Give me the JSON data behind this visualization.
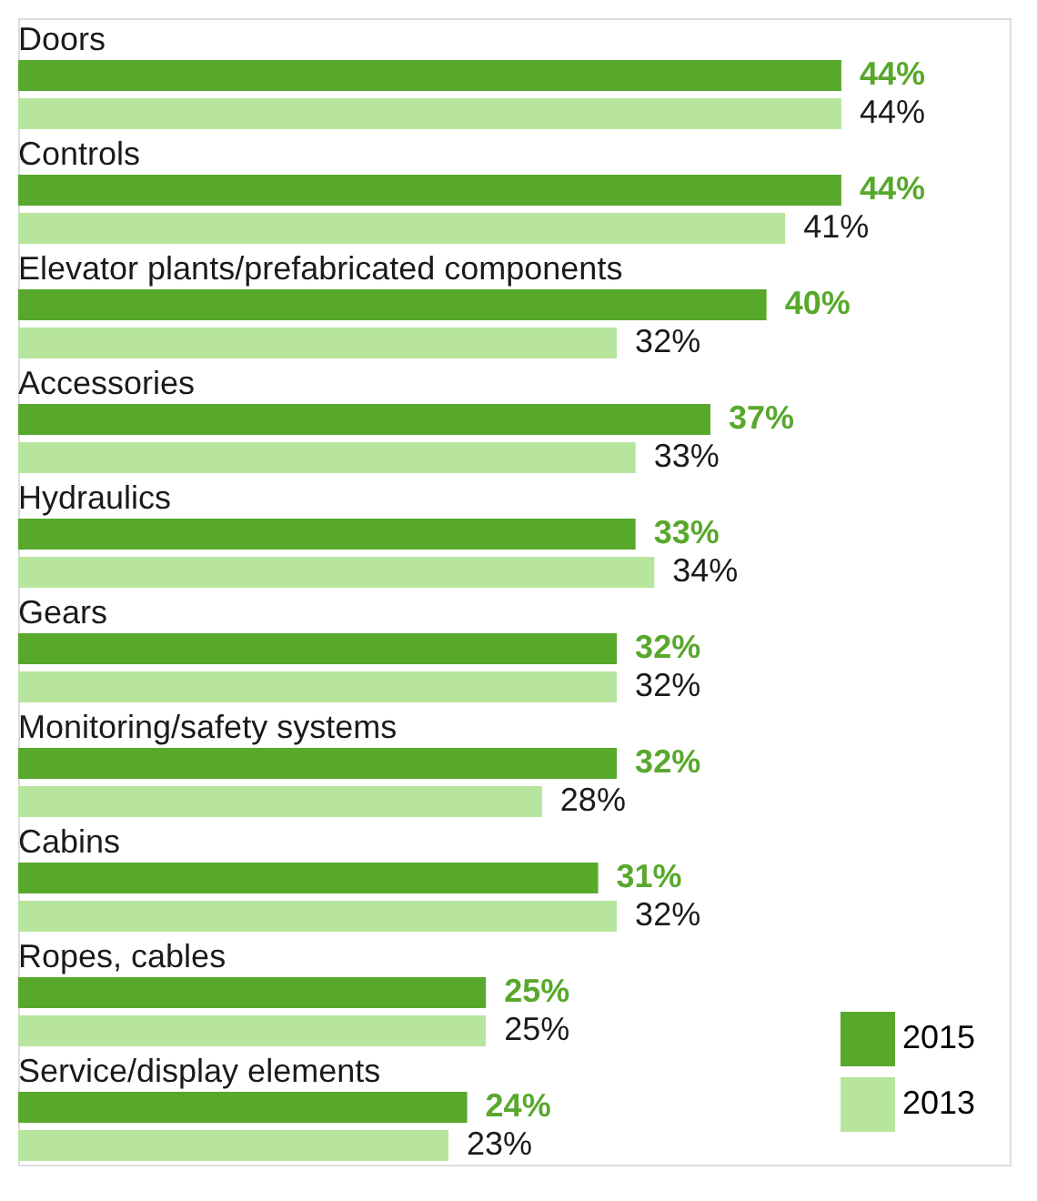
{
  "chart_data": {
    "type": "bar",
    "orientation": "horizontal",
    "categories": [
      "Doors",
      "Controls",
      "Elevator plants/prefabricated components",
      "Accessories",
      "Hydraulics",
      "Gears",
      "Monitoring/safety systems",
      "Cabins",
      "Ropes, cables",
      "Service/display elements"
    ],
    "series": [
      {
        "name": "2015",
        "color": "#58a82c",
        "values": [
          44,
          44,
          40,
          37,
          33,
          32,
          32,
          31,
          25,
          24
        ],
        "value_labels": [
          "44%",
          "44%",
          "40%",
          "37%",
          "33%",
          "32%",
          "32%",
          "31%",
          "25%",
          "24%"
        ]
      },
      {
        "name": "2013",
        "color": "#b7e59e",
        "values": [
          44,
          41,
          32,
          33,
          34,
          32,
          28,
          32,
          25,
          23
        ],
        "value_labels": [
          "44%",
          "41%",
          "32%",
          "33%",
          "34%",
          "32%",
          "28%",
          "32%",
          "25%",
          "23%"
        ]
      }
    ],
    "xlim": [
      0,
      53
    ],
    "legend": "bottom right"
  }
}
